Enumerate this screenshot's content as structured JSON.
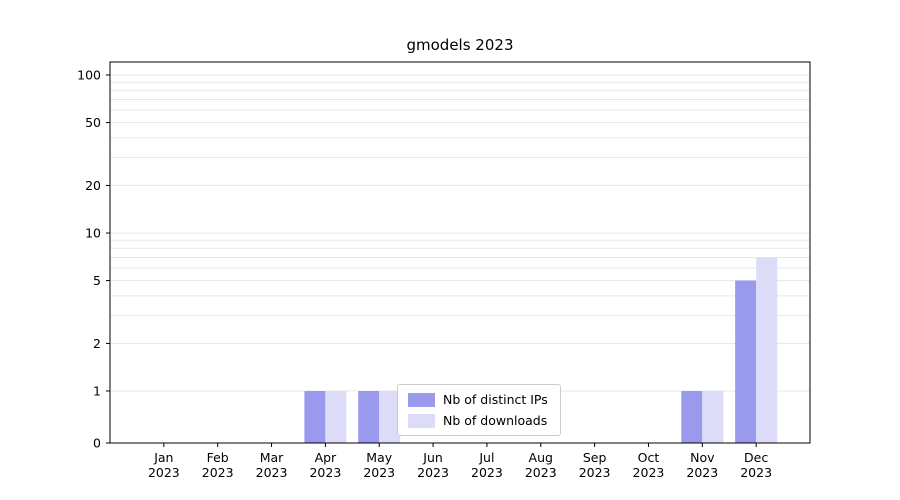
{
  "chart_data": {
    "type": "bar",
    "title": "gmodels 2023",
    "categories": [
      "Jan",
      "Feb",
      "Mar",
      "Apr",
      "May",
      "Jun",
      "Jul",
      "Aug",
      "Sep",
      "Oct",
      "Nov",
      "Dec"
    ],
    "year": "2023",
    "series": [
      {
        "name": "Nb of distinct IPs",
        "color": "#9999ee",
        "values": [
          0,
          0,
          0,
          1,
          1,
          0,
          0,
          0,
          0,
          0,
          1,
          5
        ]
      },
      {
        "name": "Nb of downloads",
        "color": "#dcdcf8",
        "values": [
          0,
          0,
          0,
          1,
          1,
          0,
          0,
          0,
          0,
          0,
          1,
          7
        ]
      }
    ],
    "yticks": [
      0,
      1,
      2,
      5,
      10,
      20,
      50,
      100
    ],
    "scale": "symlog",
    "ylim": [
      0,
      120
    ],
    "xlabel": "",
    "ylabel": "",
    "grid": true,
    "legend_position": "lower center"
  }
}
